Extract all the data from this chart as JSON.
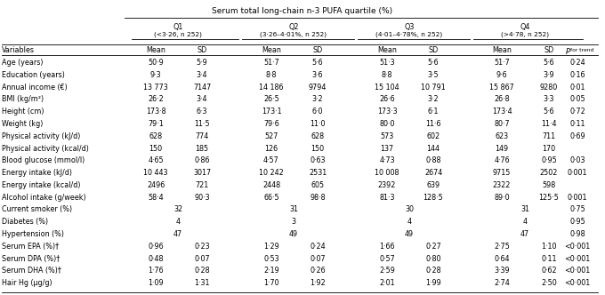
{
  "title": "Serum total long-chain n-3 PUFA quartile (%)",
  "quartile_headers": [
    "Q1",
    "Q2",
    "Q3",
    "Q4"
  ],
  "quartile_subheaders": [
    "(<3·26, n 252)",
    "(3·26–4·01%, n 252)",
    "(4·01–4·78%, n 252)",
    "(>4·78, n 252)"
  ],
  "rows": [
    {
      "label": "Age (years)",
      "vals": [
        "50·9",
        "5·9",
        "51·7",
        "5·6",
        "51·3",
        "5·6",
        "51·7",
        "5·6",
        "0·24"
      ],
      "merged": false
    },
    {
      "label": "Education (years)",
      "vals": [
        "9·3",
        "3·4",
        "8·8",
        "3·6",
        "8·8",
        "3·5",
        "9·6",
        "3·9",
        "0·16"
      ],
      "merged": false
    },
    {
      "label": "Annual income (€)",
      "vals": [
        "13 773",
        "7147",
        "14 186",
        "9794",
        "15 104",
        "10 791",
        "15 867",
        "9280",
        "0·01"
      ],
      "merged": false
    },
    {
      "label": "BMI (kg/m²)",
      "vals": [
        "26·2",
        "3·4",
        "26·5",
        "3·2",
        "26·6",
        "3·2",
        "26·8",
        "3·3",
        "0·05"
      ],
      "merged": false
    },
    {
      "label": "Height (cm)",
      "vals": [
        "173·8",
        "6·3",
        "173·1",
        "6·0",
        "173·3",
        "6·1",
        "173·4",
        "5·6",
        "0·72"
      ],
      "merged": false
    },
    {
      "label": "Weight (kg)",
      "vals": [
        "79·1",
        "11·5",
        "79·6",
        "11·0",
        "80·0",
        "11·6",
        "80·7",
        "11·4",
        "0·11"
      ],
      "merged": false
    },
    {
      "label": "Physical activity (kJ/d)",
      "vals": [
        "628",
        "774",
        "527",
        "628",
        "573",
        "602",
        "623",
        "711",
        "0·69"
      ],
      "merged": false
    },
    {
      "label": "Physical activity (kcal/d)",
      "vals": [
        "150",
        "185",
        "126",
        "150",
        "137",
        "144",
        "149",
        "170",
        ""
      ],
      "merged": false
    },
    {
      "label": "Blood glucose (mmol/l)",
      "vals": [
        "4·65",
        "0·86",
        "4·57",
        "0·63",
        "4·73",
        "0·88",
        "4·76",
        "0·95",
        "0·03"
      ],
      "merged": false
    },
    {
      "label": "Energy intake (kJ/d)",
      "vals": [
        "10 443",
        "3017",
        "10 242",
        "2531",
        "10 008",
        "2674",
        "9715",
        "2502",
        "0·001"
      ],
      "merged": false
    },
    {
      "label": "Energy intake (kcal/d)",
      "vals": [
        "2496",
        "721",
        "2448",
        "605",
        "2392",
        "639",
        "2322",
        "598",
        ""
      ],
      "merged": false
    },
    {
      "label": "Alcohol intake (g/week)",
      "vals": [
        "58·4",
        "90·3",
        "66·5",
        "98·8",
        "81·3",
        "128·5",
        "89·0",
        "125·5",
        "0·001"
      ],
      "merged": false
    },
    {
      "label": "Current smoker (%)",
      "vals": [
        "32",
        "31",
        "30",
        "31",
        "0·75"
      ],
      "merged": true
    },
    {
      "label": "Diabetes (%)",
      "vals": [
        "4",
        "3",
        "4",
        "4",
        "0·95"
      ],
      "merged": true
    },
    {
      "label": "Hypertension (%)",
      "vals": [
        "47",
        "49",
        "49",
        "47",
        "0·98"
      ],
      "merged": true
    },
    {
      "label": "Serum EPA (%)†",
      "vals": [
        "0·96",
        "0·23",
        "1·29",
        "0·24",
        "1·66",
        "0·27",
        "2·75",
        "1·10",
        "<0·001"
      ],
      "merged": false
    },
    {
      "label": "Serum DPA (%)†",
      "vals": [
        "0·48",
        "0·07",
        "0·53",
        "0·07",
        "0·57",
        "0·80",
        "0·64",
        "0·11",
        "<0·001"
      ],
      "merged": false
    },
    {
      "label": "Serum DHA (%)†",
      "vals": [
        "1·76",
        "0·28",
        "2·19",
        "0·26",
        "2·59",
        "0·28",
        "3·39",
        "0·62",
        "<0·001"
      ],
      "merged": false
    },
    {
      "label": "Hair Hg (μg/g)",
      "vals": [
        "1·09",
        "1·31",
        "1·70",
        "1·92",
        "2·01",
        "1·99",
        "2·74",
        "2·50",
        "<0·001"
      ],
      "merged": false
    }
  ],
  "fig_width": 6.8,
  "fig_height": 3.32,
  "font_size": 5.8,
  "title_font_size": 6.5
}
